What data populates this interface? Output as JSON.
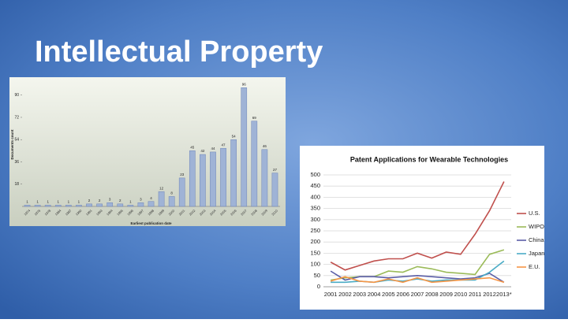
{
  "slide": {
    "title": "Intellectual Property"
  },
  "chart_data": [
    {
      "type": "bar",
      "y_label": "Documents count",
      "x_label": "Earliest publication date",
      "color": "#9fb3d6",
      "categories": [
        "1974",
        "1976",
        "1978",
        "1984",
        "1987",
        "1990",
        "1991",
        "1993",
        "1994",
        "1995",
        "1996",
        "1997",
        "1998",
        "1999",
        "2000",
        "2001",
        "2002",
        "2003",
        "2004",
        "2005",
        "2006",
        "2007",
        "2008",
        "2009",
        "2010"
      ],
      "values": [
        1,
        1,
        1,
        1,
        1,
        1,
        2,
        2,
        3,
        2,
        1,
        3,
        4,
        12,
        8,
        23,
        45,
        42,
        44,
        47,
        54,
        96,
        69,
        46,
        27
      ],
      "ylim": [
        0,
        100
      ],
      "yticks": [
        18,
        36,
        54,
        72,
        90
      ],
      "grid": false
    },
    {
      "type": "line",
      "title": "Patent Applications for Wearable Technologies",
      "categories": [
        "2001",
        "2002",
        "2003",
        "2004",
        "2005",
        "2006",
        "2007",
        "2008",
        "2009",
        "2010",
        "2011",
        "2012",
        "2013*"
      ],
      "series": [
        {
          "name": "U.S.",
          "color": "#c0504d",
          "values": [
            110,
            75,
            95,
            115,
            125,
            125,
            150,
            128,
            155,
            145,
            235,
            340,
            470
          ]
        },
        {
          "name": "WIPO",
          "color": "#9bbb59",
          "values": [
            30,
            40,
            45,
            45,
            70,
            65,
            90,
            80,
            65,
            60,
            55,
            145,
            165
          ]
        },
        {
          "name": "China",
          "color": "#5b5ea6",
          "values": [
            70,
            30,
            45,
            45,
            40,
            45,
            50,
            45,
            40,
            35,
            40,
            60,
            20
          ]
        },
        {
          "name": "Japan",
          "color": "#4bacc6",
          "values": [
            20,
            20,
            25,
            20,
            30,
            25,
            35,
            25,
            30,
            30,
            30,
            65,
            115
          ]
        },
        {
          "name": "E.U.",
          "color": "#f79646",
          "values": [
            25,
            45,
            25,
            20,
            35,
            20,
            40,
            20,
            25,
            30,
            35,
            40,
            20
          ]
        }
      ],
      "ylim": [
        0,
        500
      ],
      "yticks": [
        0,
        50,
        100,
        150,
        200,
        250,
        300,
        350,
        400,
        450,
        500
      ],
      "grid": true,
      "legend": "right"
    }
  ]
}
